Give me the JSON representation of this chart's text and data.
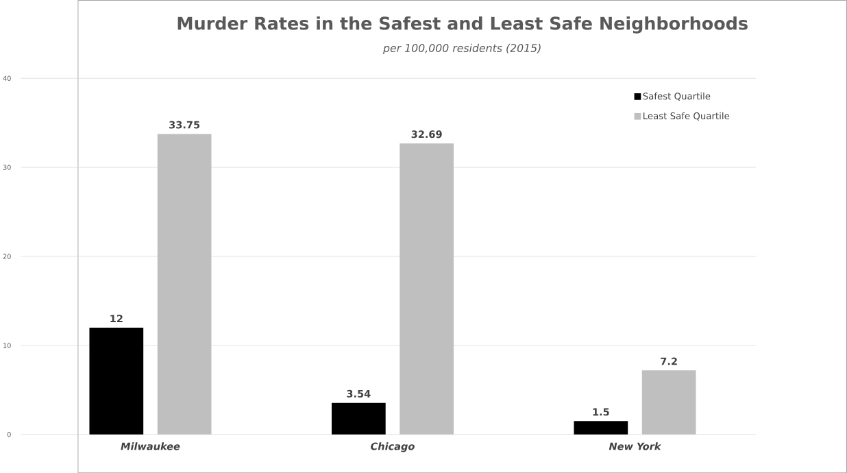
{
  "chart_data": {
    "type": "bar",
    "title": "Murder Rates in the Safest and Least Safe Neighborhoods",
    "subtitle": "per 100,000 residents (2015)",
    "categories": [
      "Milwaukee",
      "Chicago",
      "New York"
    ],
    "series": [
      {
        "name": "Safest Quartile",
        "color": "#000000",
        "values": [
          12,
          3.54,
          1.5
        ]
      },
      {
        "name": "Least Safe Quartile",
        "color": "#bfbfbf",
        "values": [
          33.75,
          32.69,
          7.2
        ]
      }
    ],
    "ylim": [
      0,
      40
    ],
    "yticks": [
      0,
      10,
      20,
      30,
      40
    ],
    "grid": "y",
    "legend": "top right",
    "data_labels": true
  }
}
